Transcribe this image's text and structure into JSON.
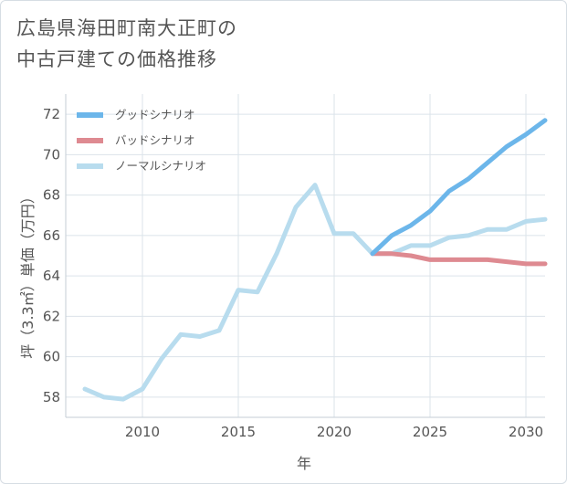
{
  "chart_data": {
    "type": "line",
    "title_lines": [
      "広島県海田町南大正町の",
      "中古戸建ての価格推移"
    ],
    "xlabel": "年",
    "ylabel": "坪（3.3㎡）単価（万円）",
    "xlim": [
      2006,
      2031
    ],
    "ylim": [
      57,
      73
    ],
    "xticks": [
      2010,
      2015,
      2020,
      2025,
      2030
    ],
    "yticks": [
      58,
      60,
      62,
      64,
      66,
      68,
      70,
      72
    ],
    "grid": true,
    "legend_position": "top-left",
    "series": [
      {
        "name": "グッドシナリオ",
        "color": "#6cb6ea",
        "x": [
          2022,
          2023,
          2024,
          2025,
          2026,
          2027,
          2028,
          2029,
          2030,
          2031
        ],
        "y": [
          65.1,
          66.0,
          66.5,
          67.2,
          68.2,
          68.8,
          69.6,
          70.4,
          71.0,
          71.7
        ]
      },
      {
        "name": "バッドシナリオ",
        "color": "#de8a91",
        "x": [
          2022,
          2023,
          2024,
          2025,
          2026,
          2027,
          2028,
          2029,
          2030,
          2031
        ],
        "y": [
          65.1,
          65.1,
          65.0,
          64.8,
          64.8,
          64.8,
          64.8,
          64.7,
          64.6,
          64.6
        ]
      },
      {
        "name": "ノーマルシナリオ",
        "color": "#b8dcee",
        "x": [
          2007,
          2008,
          2009,
          2010,
          2011,
          2012,
          2013,
          2014,
          2015,
          2016,
          2017,
          2018,
          2019,
          2020,
          2021,
          2022,
          2023,
          2024,
          2025,
          2026,
          2027,
          2028,
          2029,
          2030,
          2031
        ],
        "y": [
          58.4,
          58.0,
          57.9,
          58.4,
          59.9,
          61.1,
          61.0,
          61.3,
          63.3,
          63.2,
          65.1,
          67.4,
          68.5,
          66.1,
          66.1,
          65.1,
          65.1,
          65.5,
          65.5,
          65.9,
          66.0,
          66.3,
          66.3,
          66.7,
          66.8
        ]
      }
    ]
  }
}
